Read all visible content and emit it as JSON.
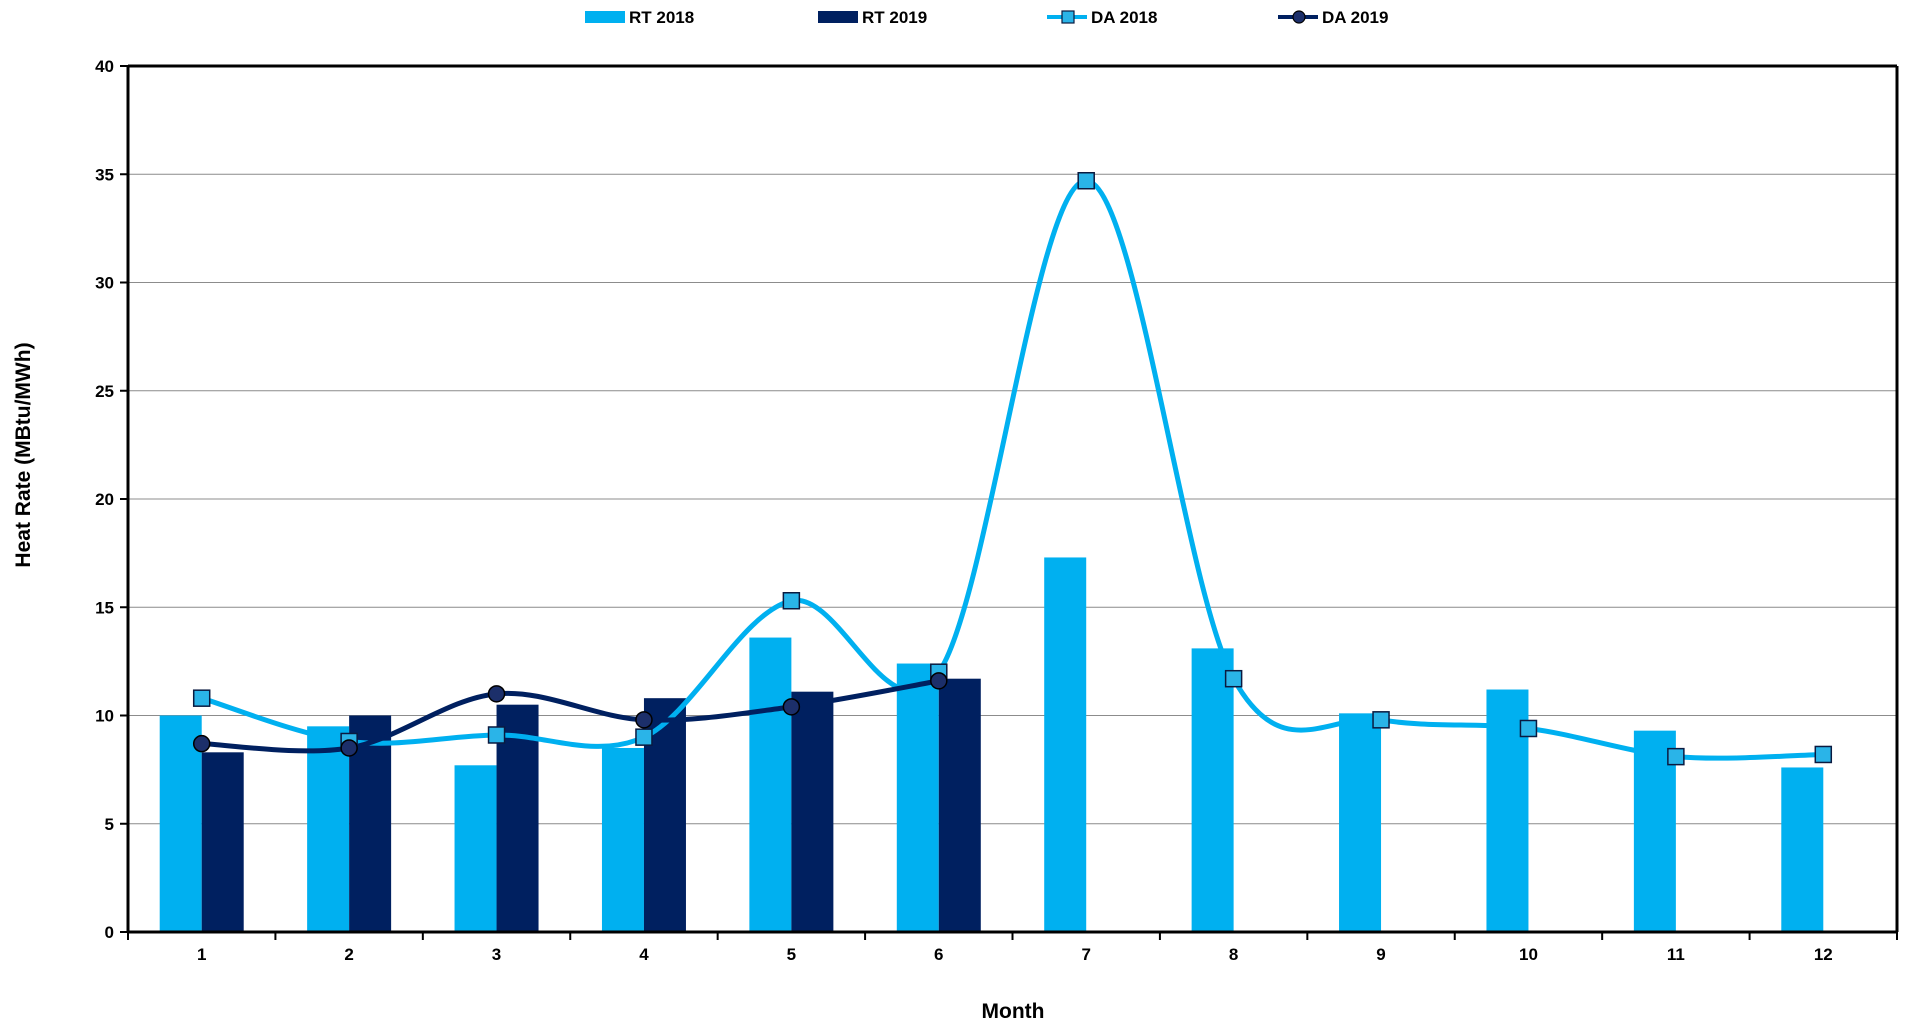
{
  "chart_data": {
    "type": "bar",
    "xlabel": "Month",
    "ylabel": "Heat Rate (MBtu/MWh)",
    "ylim": [
      0,
      40
    ],
    "yticks": [
      0,
      5,
      10,
      15,
      20,
      25,
      30,
      35,
      40
    ],
    "grid": "horizontal",
    "legend_position": "top",
    "categories": [
      "1",
      "2",
      "3",
      "4",
      "5",
      "6",
      "7",
      "8",
      "9",
      "10",
      "11",
      "12"
    ],
    "series": [
      {
        "name": "RT 2018",
        "kind": "bar",
        "color": "#00b0f0",
        "values": [
          10.0,
          9.5,
          7.7,
          8.5,
          13.6,
          12.4,
          17.3,
          13.1,
          10.1,
          11.2,
          9.3,
          7.6
        ]
      },
      {
        "name": "RT 2019",
        "kind": "bar",
        "color": "#002060",
        "values": [
          8.3,
          10.0,
          10.5,
          10.8,
          11.1,
          11.7,
          null,
          null,
          null,
          null,
          null,
          null
        ]
      },
      {
        "name": "DA 2018",
        "kind": "line",
        "marker": "square",
        "color": "#00b0f0",
        "values": [
          10.8,
          8.8,
          9.1,
          9.0,
          15.3,
          12.0,
          34.7,
          11.7,
          9.8,
          9.4,
          8.1,
          8.2
        ]
      },
      {
        "name": "DA 2019",
        "kind": "line",
        "marker": "circle",
        "color": "#002060",
        "values": [
          8.7,
          8.5,
          11.0,
          9.8,
          10.4,
          11.6,
          null,
          null,
          null,
          null,
          null,
          null
        ]
      }
    ]
  }
}
